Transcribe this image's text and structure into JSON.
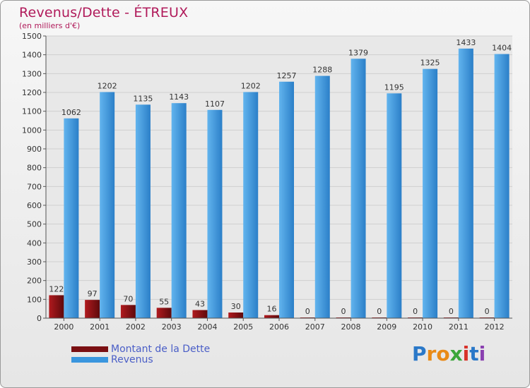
{
  "title": "Revenus/Dette - ÉTREUX",
  "subtitle": "(en milliers d'€)",
  "chart_data": {
    "type": "bar",
    "title": "Revenus/Dette - ÉTREUX",
    "ylabel": "(en milliers d'€)",
    "ylim": [
      0,
      1500
    ],
    "yticks": [
      0,
      100,
      200,
      300,
      400,
      500,
      600,
      700,
      800,
      900,
      1000,
      1100,
      1200,
      1300,
      1400,
      1500
    ],
    "grid": true,
    "categories": [
      "2000",
      "2001",
      "2002",
      "2003",
      "2004",
      "2005",
      "2006",
      "2007",
      "2008",
      "2009",
      "2010",
      "2011",
      "2012"
    ],
    "series": [
      {
        "name": "Montant de la Dette",
        "color": "#7a0f12",
        "values": [
          122,
          97,
          70,
          55,
          43,
          30,
          16,
          0,
          0,
          0,
          0,
          0,
          0
        ]
      },
      {
        "name": "Revenus",
        "color": "#3a96de",
        "values": [
          1062,
          1202,
          1135,
          1143,
          1107,
          1202,
          1257,
          1288,
          1379,
          1195,
          1325,
          1433,
          1404
        ]
      }
    ]
  },
  "legend": [
    {
      "label": "Montant de la Dette",
      "color": "#7a0f12"
    },
    {
      "label": "Revenus",
      "color": "#3a96de"
    }
  ],
  "logo": {
    "text": "Proxiti",
    "letters": [
      "P",
      "r",
      "o",
      "x",
      "i",
      "t",
      "i"
    ],
    "colors": [
      "#2a78c8",
      "#e98a16",
      "#e98a16",
      "#3aa63a",
      "#d8322a",
      "#2a78c8",
      "#8a3fb0"
    ]
  }
}
